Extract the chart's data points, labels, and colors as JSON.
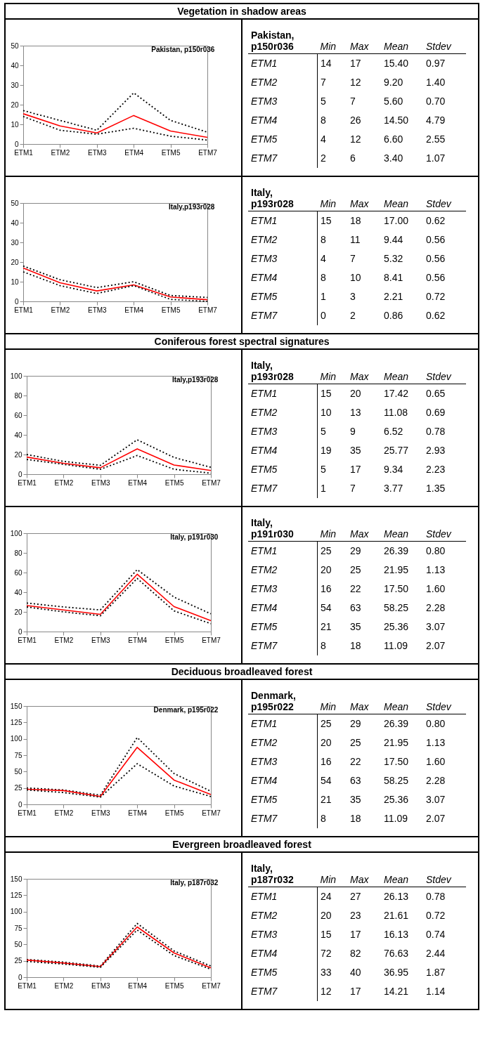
{
  "chart_data": [
    {
      "type": "line",
      "subtitle": "Vegetation in shadow areas",
      "title": "Pakistan, p150r036",
      "categories": [
        "ETM1",
        "ETM2",
        "ETM3",
        "ETM4",
        "ETM5",
        "ETM7"
      ],
      "ylim": [
        0,
        50
      ],
      "yticks": [
        0,
        10,
        20,
        30,
        40,
        50
      ],
      "grid": false,
      "series": [
        {
          "color": "#000000",
          "line_style": "dotted",
          "values": [
            17,
            12,
            7,
            26,
            12,
            6
          ]
        },
        {
          "color": "#ff0000",
          "line_style": "solid",
          "values": [
            15.4,
            9.2,
            5.6,
            14.5,
            6.6,
            3.4
          ]
        },
        {
          "color": "#000000",
          "line_style": "dotted",
          "values": [
            14,
            7,
            5,
            8,
            4,
            2
          ]
        }
      ]
    },
    {
      "type": "other",
      "title": "Pakistan, p150r036",
      "categories": [
        "ETM1",
        "ETM2",
        "ETM3",
        "ETM4",
        "ETM5",
        "ETM7"
      ],
      "series": [
        {
          "name": "Min",
          "values": [
            14,
            7,
            5,
            8,
            4,
            2
          ],
          "value_labels": [
            "14",
            "7",
            "5",
            "8",
            "4",
            "2"
          ]
        },
        {
          "name": "Max",
          "values": [
            17,
            12,
            7,
            26,
            12,
            6
          ],
          "value_labels": [
            "17",
            "12",
            "7",
            "26",
            "12",
            "6"
          ]
        },
        {
          "name": "Mean",
          "values": [
            15.4,
            9.2,
            5.6,
            14.5,
            6.6,
            3.4
          ],
          "value_labels": [
            "15.40",
            "9.20",
            "5.60",
            "14.50",
            "6.60",
            "3.40"
          ]
        },
        {
          "name": "Stdev",
          "values": [
            0.97,
            1.4,
            0.7,
            4.79,
            2.55,
            1.07
          ],
          "value_labels": [
            "0.97",
            "1.40",
            "0.70",
            "4.79",
            "2.55",
            "1.07"
          ]
        }
      ]
    },
    {
      "type": "line",
      "title": "Italy,p193r028",
      "categories": [
        "ETM1",
        "ETM2",
        "ETM3",
        "ETM4",
        "ETM5",
        "ETM7"
      ],
      "ylim": [
        0,
        50
      ],
      "yticks": [
        0,
        10,
        20,
        30,
        40,
        50
      ],
      "grid": false,
      "series": [
        {
          "color": "#000000",
          "line_style": "dotted",
          "values": [
            18,
            11,
            7,
            10,
            3,
            2
          ]
        },
        {
          "color": "#ff0000",
          "line_style": "solid",
          "values": [
            17,
            9.44,
            5.32,
            8.41,
            2.21,
            0.86
          ]
        },
        {
          "color": "#000000",
          "line_style": "dotted",
          "values": [
            15,
            8,
            4,
            8,
            1,
            0
          ]
        }
      ]
    },
    {
      "type": "other",
      "title": "Italy, p193r028",
      "categories": [
        "ETM1",
        "ETM2",
        "ETM3",
        "ETM4",
        "ETM5",
        "ETM7"
      ],
      "series": [
        {
          "name": "Min",
          "values": [
            15,
            8,
            4,
            8,
            1,
            0
          ],
          "value_labels": [
            "15",
            "8",
            "4",
            "8",
            "1",
            "0"
          ]
        },
        {
          "name": "Max",
          "values": [
            18,
            11,
            7,
            10,
            3,
            2
          ],
          "value_labels": [
            "18",
            "11",
            "7",
            "10",
            "3",
            "2"
          ]
        },
        {
          "name": "Mean",
          "values": [
            17,
            9.44,
            5.32,
            8.41,
            2.21,
            0.86
          ],
          "value_labels": [
            "17.00",
            "9.44",
            "5.32",
            "8.41",
            "2.21",
            "0.86"
          ]
        },
        {
          "name": "Stdev",
          "values": [
            0.62,
            0.56,
            0.56,
            0.56,
            0.72,
            0.62
          ],
          "value_labels": [
            "0.62",
            "0.56",
            "0.56",
            "0.56",
            "0.72",
            "0.62"
          ]
        }
      ]
    },
    {
      "type": "line",
      "subtitle": "Coniferous forest spectral signatures",
      "title": "Italy,p193r028",
      "categories": [
        "ETM1",
        "ETM2",
        "ETM3",
        "ETM4",
        "ETM5",
        "ETM7"
      ],
      "ylim": [
        0,
        100
      ],
      "yticks": [
        0,
        20,
        40,
        60,
        80,
        100
      ],
      "grid": false,
      "series": [
        {
          "color": "#000000",
          "line_style": "dotted",
          "values": [
            20,
            13,
            9,
            35,
            17,
            7
          ]
        },
        {
          "color": "#ff0000",
          "line_style": "solid",
          "values": [
            17.42,
            11.08,
            6.52,
            25.77,
            9.34,
            3.77
          ]
        },
        {
          "color": "#000000",
          "line_style": "dotted",
          "values": [
            15,
            10,
            5,
            19,
            5,
            1
          ]
        }
      ]
    },
    {
      "type": "other",
      "title": "Italy, p193r028",
      "categories": [
        "ETM1",
        "ETM2",
        "ETM3",
        "ETM4",
        "ETM5",
        "ETM7"
      ],
      "series": [
        {
          "name": "Min",
          "values": [
            15,
            10,
            5,
            19,
            5,
            1
          ],
          "value_labels": [
            "15",
            "10",
            "5",
            "19",
            "5",
            "1"
          ]
        },
        {
          "name": "Max",
          "values": [
            20,
            13,
            9,
            35,
            17,
            7
          ],
          "value_labels": [
            "20",
            "13",
            "9",
            "35",
            "17",
            "7"
          ]
        },
        {
          "name": "Mean",
          "values": [
            17.42,
            11.08,
            6.52,
            25.77,
            9.34,
            3.77
          ],
          "value_labels": [
            "17.42",
            "11.08",
            "6.52",
            "25.77",
            "9.34",
            "3.77"
          ]
        },
        {
          "name": "Stdev",
          "values": [
            0.65,
            0.69,
            0.78,
            2.93,
            2.23,
            1.35
          ],
          "value_labels": [
            "0.65",
            "0.69",
            "0.78",
            "2.93",
            "2.23",
            "1.35"
          ]
        }
      ]
    },
    {
      "type": "line",
      "title": "Italy, p191r030",
      "categories": [
        "ETM1",
        "ETM2",
        "ETM3",
        "ETM4",
        "ETM5",
        "ETM7"
      ],
      "ylim": [
        0,
        100
      ],
      "yticks": [
        0,
        20,
        40,
        60,
        80,
        100
      ],
      "grid": false,
      "series": [
        {
          "color": "#000000",
          "line_style": "dotted",
          "values": [
            29,
            25,
            22,
            63,
            35,
            18
          ]
        },
        {
          "color": "#ff0000",
          "line_style": "solid",
          "values": [
            26.39,
            21.95,
            17.5,
            58.25,
            25.36,
            11.09
          ]
        },
        {
          "color": "#000000",
          "line_style": "dotted",
          "values": [
            25,
            20,
            16,
            54,
            21,
            8
          ]
        }
      ]
    },
    {
      "type": "other",
      "title": "Italy, p191r030",
      "categories": [
        "ETM1",
        "ETM2",
        "ETM3",
        "ETM4",
        "ETM5",
        "ETM7"
      ],
      "series": [
        {
          "name": "Min",
          "values": [
            25,
            20,
            16,
            54,
            21,
            8
          ],
          "value_labels": [
            "25",
            "20",
            "16",
            "54",
            "21",
            "8"
          ]
        },
        {
          "name": "Max",
          "values": [
            29,
            25,
            22,
            63,
            35,
            18
          ],
          "value_labels": [
            "29",
            "25",
            "22",
            "63",
            "35",
            "18"
          ]
        },
        {
          "name": "Mean",
          "values": [
            26.39,
            21.95,
            17.5,
            58.25,
            25.36,
            11.09
          ],
          "value_labels": [
            "26.39",
            "21.95",
            "17.50",
            "58.25",
            "25.36",
            "11.09"
          ]
        },
        {
          "name": "Stdev",
          "values": [
            0.8,
            1.13,
            1.6,
            2.28,
            3.07,
            2.07
          ],
          "value_labels": [
            "0.80",
            "1.13",
            "1.60",
            "2.28",
            "3.07",
            "2.07"
          ]
        }
      ]
    },
    {
      "type": "line",
      "subtitle": "Deciduous broadleaved forest",
      "title": "Denmark, p195r022",
      "categories": [
        "ETM1",
        "ETM2",
        "ETM3",
        "ETM4",
        "ETM5",
        "ETM7"
      ],
      "ylim": [
        0,
        150
      ],
      "yticks": [
        0,
        25,
        50,
        75,
        100,
        125,
        150
      ],
      "grid": false,
      "series": [
        {
          "color": "#000000",
          "line_style": "dotted",
          "values": [
            25,
            22,
            14,
            102,
            47,
            20
          ]
        },
        {
          "color": "#ff0000",
          "line_style": "solid",
          "values": [
            23,
            21,
            12,
            87,
            37,
            15
          ]
        },
        {
          "color": "#000000",
          "line_style": "dotted",
          "values": [
            22,
            18,
            11,
            62,
            28,
            12
          ]
        }
      ]
    },
    {
      "type": "other",
      "title": "Denmark, p195r022",
      "categories": [
        "ETM1",
        "ETM2",
        "ETM3",
        "ETM4",
        "ETM5",
        "ETM7"
      ],
      "series": [
        {
          "name": "Min",
          "values": [
            25,
            20,
            16,
            54,
            21,
            8
          ],
          "value_labels": [
            "25",
            "20",
            "16",
            "54",
            "21",
            "8"
          ]
        },
        {
          "name": "Max",
          "values": [
            29,
            25,
            22,
            63,
            35,
            18
          ],
          "value_labels": [
            "29",
            "25",
            "22",
            "63",
            "35",
            "18"
          ]
        },
        {
          "name": "Mean",
          "values": [
            26.39,
            21.95,
            17.5,
            58.25,
            25.36,
            11.09
          ],
          "value_labels": [
            "26.39",
            "21.95",
            "17.50",
            "58.25",
            "25.36",
            "11.09"
          ]
        },
        {
          "name": "Stdev",
          "values": [
            0.8,
            1.13,
            1.6,
            2.28,
            3.07,
            2.07
          ],
          "value_labels": [
            "0.80",
            "1.13",
            "1.60",
            "2.28",
            "3.07",
            "2.07"
          ]
        }
      ]
    },
    {
      "type": "line",
      "subtitle": "Evergreen broadleaved forest",
      "title": "Italy, p187r032",
      "categories": [
        "ETM1",
        "ETM2",
        "ETM3",
        "ETM4",
        "ETM5",
        "ETM7"
      ],
      "ylim": [
        0,
        150
      ],
      "yticks": [
        0,
        25,
        50,
        75,
        100,
        125,
        150
      ],
      "grid": false,
      "series": [
        {
          "color": "#000000",
          "line_style": "dotted",
          "values": [
            27,
            23,
            17,
            82,
            40,
            17
          ]
        },
        {
          "color": "#ff0000",
          "line_style": "solid",
          "values": [
            26.13,
            21.61,
            16.13,
            76.63,
            36.95,
            14.21
          ]
        },
        {
          "color": "#000000",
          "line_style": "dotted",
          "values": [
            24,
            20,
            15,
            72,
            33,
            12
          ]
        }
      ]
    },
    {
      "type": "other",
      "title": "Italy, p187r032",
      "categories": [
        "ETM1",
        "ETM2",
        "ETM3",
        "ETM4",
        "ETM5",
        "ETM7"
      ],
      "series": [
        {
          "name": "Min",
          "values": [
            24,
            20,
            15,
            72,
            33,
            12
          ],
          "value_labels": [
            "24",
            "20",
            "15",
            "72",
            "33",
            "12"
          ]
        },
        {
          "name": "Max",
          "values": [
            27,
            23,
            17,
            82,
            40,
            17
          ],
          "value_labels": [
            "27",
            "23",
            "17",
            "82",
            "40",
            "17"
          ]
        },
        {
          "name": "Mean",
          "values": [
            26.13,
            21.61,
            16.13,
            76.63,
            36.95,
            14.21
          ],
          "value_labels": [
            "26.13",
            "21.61",
            "16.13",
            "76.63",
            "36.95",
            "14.21"
          ]
        },
        {
          "name": "Stdev",
          "values": [
            0.78,
            0.72,
            0.74,
            2.44,
            1.87,
            1.14
          ],
          "value_labels": [
            "0.78",
            "0.72",
            "0.74",
            "2.44",
            "1.87",
            "1.14"
          ]
        }
      ]
    }
  ]
}
